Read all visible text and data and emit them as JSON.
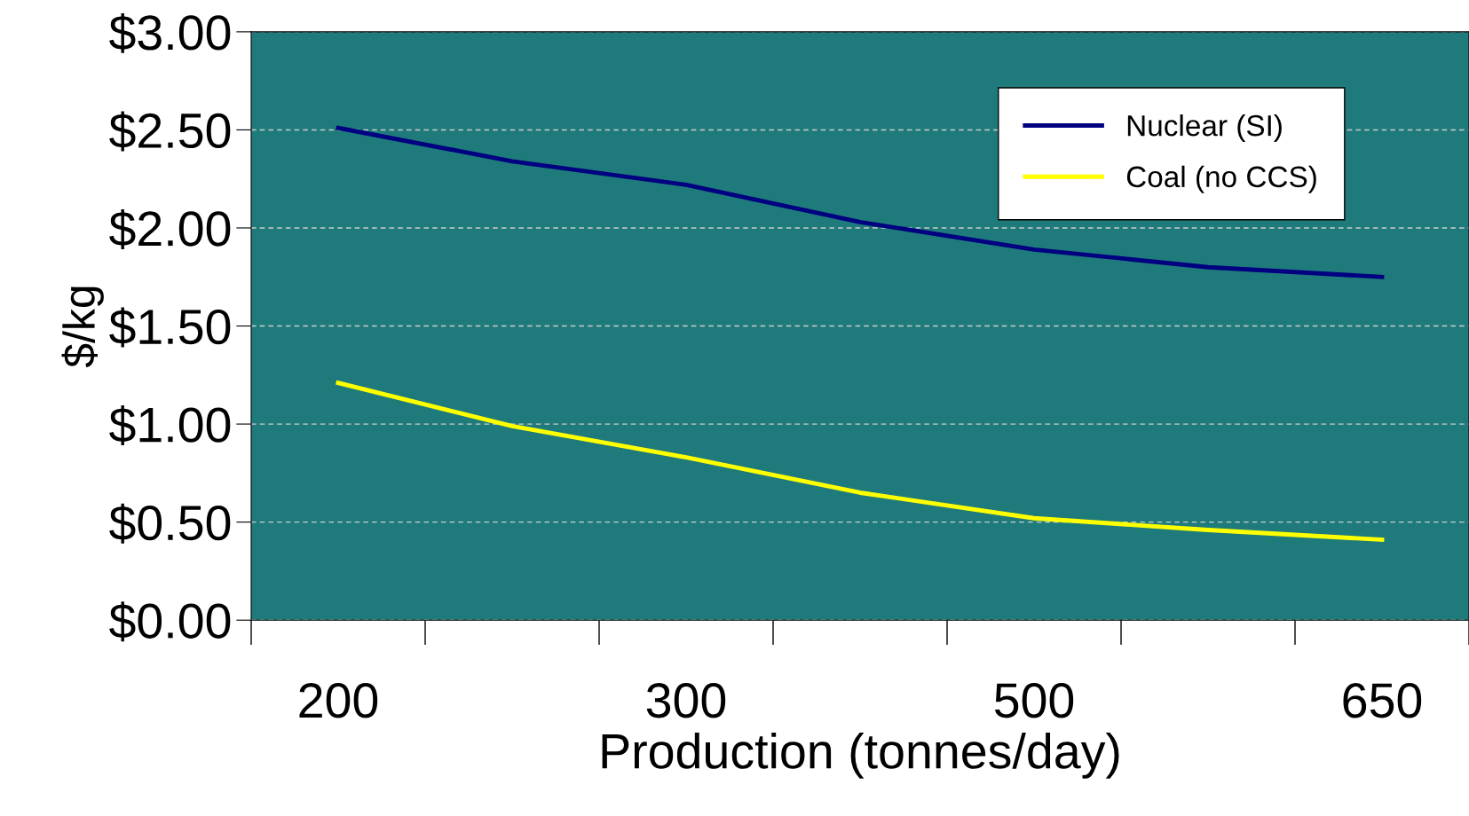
{
  "chart_data": {
    "type": "line",
    "xlabel": "Production (tonnes/day)",
    "ylabel": "$/kg",
    "categories": [
      "200",
      null,
      "300",
      null,
      "500",
      null,
      "650"
    ],
    "series": [
      {
        "name": "Nuclear (SI)",
        "color": "#000080",
        "values": [
          2.51,
          2.34,
          2.22,
          2.03,
          1.89,
          1.8,
          1.75
        ]
      },
      {
        "name": "Coal (no CCS)",
        "color": "#ffff00",
        "values": [
          1.21,
          0.99,
          0.83,
          0.65,
          0.52,
          0.46,
          0.41
        ]
      }
    ],
    "ylim": [
      0,
      3
    ],
    "yticks": [
      {
        "value": 0,
        "label": "$0.00"
      },
      {
        "value": 0.5,
        "label": "$0.50"
      },
      {
        "value": 1,
        "label": "$1.00"
      },
      {
        "value": 1.5,
        "label": "$1.50"
      },
      {
        "value": 2,
        "label": "$2.00"
      },
      {
        "value": 2.5,
        "label": "$2.50"
      },
      {
        "value": 3,
        "label": "$3.00"
      }
    ],
    "grid": "y",
    "legend": "top right",
    "marker": "none",
    "line_style": "solid"
  }
}
